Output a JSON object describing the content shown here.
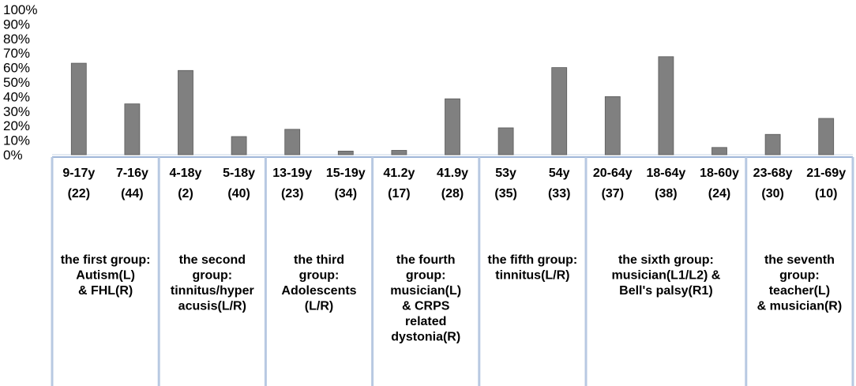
{
  "chart_data": {
    "type": "bar",
    "ylim": [
      0,
      100
    ],
    "yticks": [
      "0%",
      "10%",
      "20%",
      "30%",
      "40%",
      "50%",
      "60%",
      "70%",
      "80%",
      "90%",
      "100%"
    ],
    "bar_color": "#808080",
    "grid": false,
    "categories": [
      {
        "line1": "9-17y",
        "line2": "(22)"
      },
      {
        "line1": "7-16y",
        "line2": "(44)"
      },
      {
        "line1": "4-18y",
        "line2": "(2)"
      },
      {
        "line1": "5-18y",
        "line2": "(40)"
      },
      {
        "line1": "13-19y",
        "line2": "(23)"
      },
      {
        "line1": "15-19y",
        "line2": "(34)"
      },
      {
        "line1": "41.2y",
        "line2": "(17)"
      },
      {
        "line1": "41.9y",
        "line2": "(28)"
      },
      {
        "line1": "53y",
        "line2": "(35)"
      },
      {
        "line1": "54y",
        "line2": "(33)"
      },
      {
        "line1": "20-64y",
        "line2": "(37)"
      },
      {
        "line1": "18-64y",
        "line2": "(38)"
      },
      {
        "line1": "18-60y",
        "line2": "(24)"
      },
      {
        "line1": "23-68y",
        "line2": "(30)"
      },
      {
        "line1": "21-69y",
        "line2": "(10)"
      }
    ],
    "values": [
      63,
      35,
      58,
      12.5,
      17.5,
      2.5,
      3,
      38.5,
      18.5,
      60,
      40,
      67.5,
      5,
      14,
      25
    ],
    "groups": [
      {
        "count": 2,
        "lines": [
          "the first group:",
          "Autism(L)",
          "& FHL(R)"
        ]
      },
      {
        "count": 2,
        "lines": [
          "the second",
          "group:",
          "tinnitus/hyper",
          "acusis(L/R)"
        ]
      },
      {
        "count": 2,
        "lines": [
          "the third",
          "group:",
          "Adolescents",
          "(L/R)"
        ]
      },
      {
        "count": 2,
        "lines": [
          "the fourth",
          "group:",
          "musician(L)",
          "& CRPS",
          "related",
          "dystonia(R)"
        ]
      },
      {
        "count": 2,
        "lines": [
          "the fifth group:",
          "tinnitus(L/R)"
        ]
      },
      {
        "count": 3,
        "lines": [
          "the sixth group:",
          "musician(L1/L2) &",
          "Bell's palsy(R1)"
        ]
      },
      {
        "count": 2,
        "lines": [
          "the seventh",
          "group:",
          "teacher(L)",
          "& musician(R)"
        ]
      }
    ]
  }
}
